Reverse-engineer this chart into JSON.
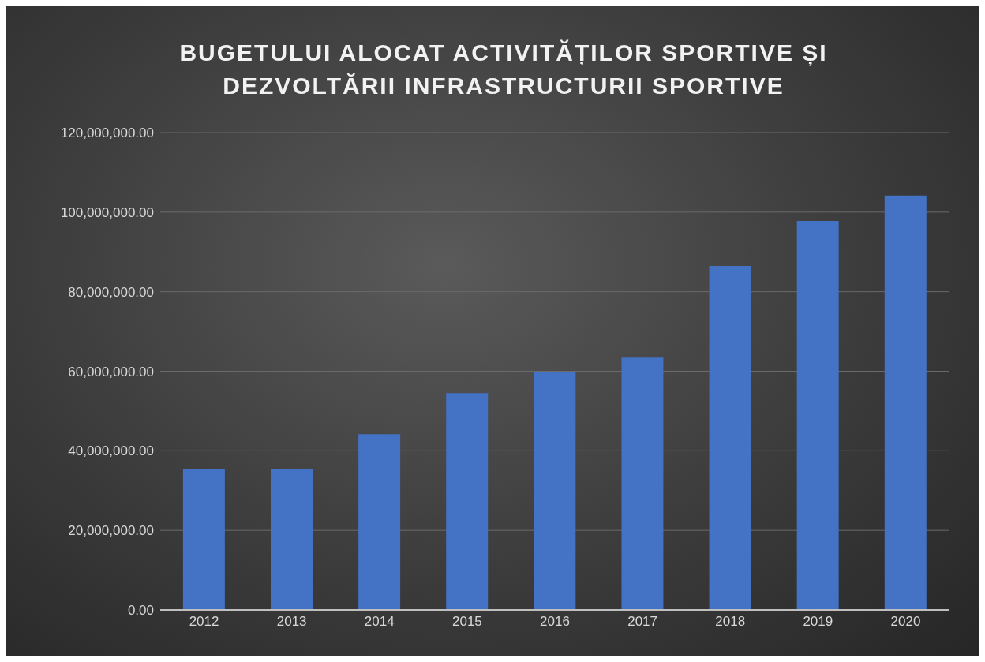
{
  "chart_data": {
    "type": "bar",
    "title": "BUGETULUI  ALOCAT ACTIVITĂȚILOR  SPORTIVE  ȘI DEZVOLTĂRII  INFRASTRUCTURII  SPORTIVE",
    "categories": [
      "2012",
      "2013",
      "2014",
      "2015",
      "2016",
      "2017",
      "2018",
      "2019",
      "2020"
    ],
    "values": [
      35400000,
      35400000,
      44200000,
      54500000,
      59800000,
      63400000,
      86500000,
      97800000,
      104200000
    ],
    "color": "#4472c4",
    "ylim": [
      0,
      120000000
    ],
    "yticks": [
      {
        "value": 0,
        "label": "0.00"
      },
      {
        "value": 20000000,
        "label": "20,000,000.00"
      },
      {
        "value": 40000000,
        "label": "40,000,000.00"
      },
      {
        "value": 60000000,
        "label": "60,000,000.00"
      },
      {
        "value": 80000000,
        "label": "80,000,000.00"
      },
      {
        "value": 100000000,
        "label": "100,000,000.00"
      },
      {
        "value": 120000000,
        "label": "120,000,000.00"
      }
    ],
    "grid": "y"
  }
}
